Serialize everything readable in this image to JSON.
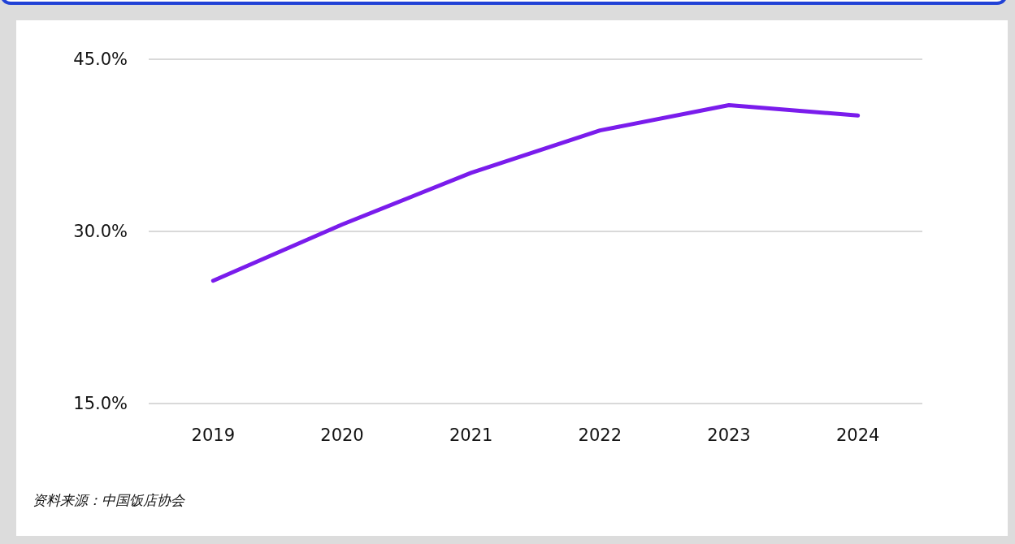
{
  "chart_data": {
    "type": "line",
    "categories": [
      "2019",
      "2020",
      "2021",
      "2022",
      "2023",
      "2024"
    ],
    "series": [
      {
        "color": "#7a1cec",
        "values": [
          25.7,
          30.6,
          35.1,
          38.8,
          41.0,
          40.1
        ]
      }
    ],
    "ylim": [
      15,
      45
    ],
    "yticks": [
      {
        "value": 15,
        "label": "15.0%"
      },
      {
        "value": 30,
        "label": "30.0%"
      },
      {
        "value": 45,
        "label": "45.0%"
      }
    ],
    "grid": "y",
    "marker": "none",
    "line_style": "solid",
    "annotations": [
      "资料来源：中国饭店协会"
    ]
  }
}
